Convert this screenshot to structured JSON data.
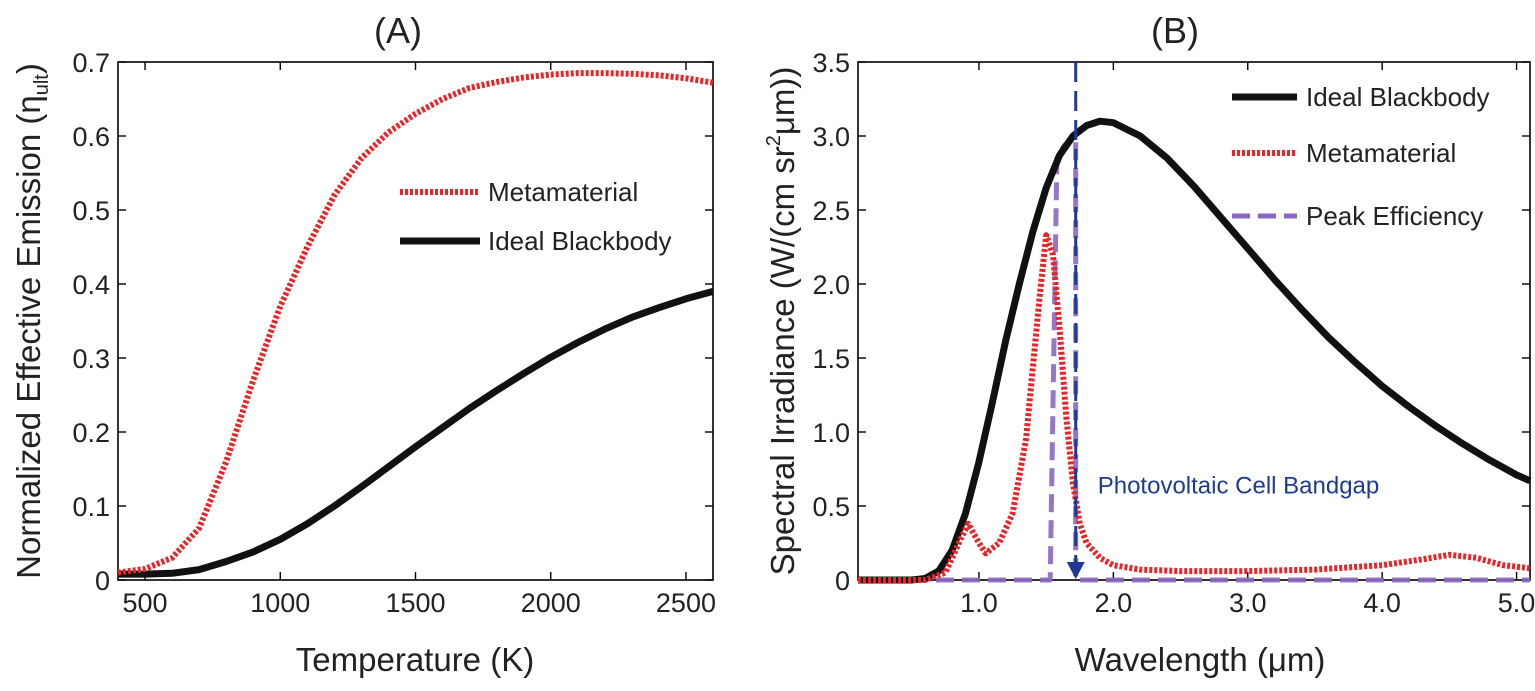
{
  "chart_data": [
    {
      "type": "line",
      "panel": "A",
      "title": "(A)",
      "xlabel": "Temperature (K)",
      "ylabel_main": "Normalized Effective Emission (η",
      "ylabel_sub": "ult",
      "ylabel_close": ")",
      "xlim": [
        400,
        2600
      ],
      "ylim": [
        0,
        0.7
      ],
      "xticks": [
        "500",
        "1000",
        "1500",
        "2000",
        "2500"
      ],
      "xtick_values": [
        500,
        1000,
        1500,
        2000,
        2500
      ],
      "yticks": [
        "0",
        "0.1",
        "0.2",
        "0.3",
        "0.4",
        "0.5",
        "0.6",
        "0.7"
      ],
      "ytick_values": [
        0,
        0.1,
        0.2,
        0.3,
        0.4,
        0.5,
        0.6,
        0.7
      ],
      "legend_position": "center-right",
      "series": [
        {
          "name": "Metamaterial",
          "style": "dotted",
          "color": "#e8262a",
          "x": [
            400,
            500,
            600,
            700,
            800,
            900,
            1000,
            1100,
            1200,
            1300,
            1400,
            1500,
            1600,
            1700,
            1800,
            1900,
            2000,
            2100,
            2200,
            2300,
            2400,
            2500,
            2600
          ],
          "y": [
            0.01,
            0.015,
            0.03,
            0.07,
            0.16,
            0.27,
            0.37,
            0.45,
            0.52,
            0.57,
            0.605,
            0.63,
            0.65,
            0.665,
            0.673,
            0.679,
            0.683,
            0.685,
            0.685,
            0.684,
            0.682,
            0.678,
            0.672
          ]
        },
        {
          "name": "Ideal Blackbody",
          "style": "solid",
          "color": "#111111",
          "x": [
            400,
            500,
            600,
            700,
            800,
            900,
            1000,
            1100,
            1200,
            1300,
            1400,
            1500,
            1600,
            1700,
            1800,
            1900,
            2000,
            2100,
            2200,
            2300,
            2400,
            2500,
            2600
          ],
          "y": [
            0.008,
            0.008,
            0.009,
            0.014,
            0.025,
            0.038,
            0.055,
            0.076,
            0.1,
            0.126,
            0.153,
            0.18,
            0.206,
            0.232,
            0.256,
            0.279,
            0.301,
            0.321,
            0.339,
            0.355,
            0.368,
            0.38,
            0.39
          ]
        }
      ]
    },
    {
      "type": "line",
      "panel": "B",
      "title": "(B)",
      "xlabel": "Wavelength (μm)",
      "ylabel_main": "Spectral Irradiance (W/(cm sr",
      "ylabel_sup": "2",
      "ylabel_close": "μm))",
      "xlim": [
        0.1,
        5.1
      ],
      "ylim": [
        0,
        3.5
      ],
      "xticks": [
        "1.0",
        "2.0",
        "3.0",
        "4.0",
        "5.0"
      ],
      "xtick_values": [
        1.0,
        2.0,
        3.0,
        4.0,
        5.0
      ],
      "yticks": [
        "0",
        "0.5",
        "1.0",
        "1.5",
        "2.0",
        "2.5",
        "3.0",
        "3.5"
      ],
      "ytick_values": [
        0,
        0.5,
        1.0,
        1.5,
        2.0,
        2.5,
        3.0,
        3.5
      ],
      "legend_position": "top-right",
      "annotation": {
        "text": "Photovoltaic Cell Bandgap",
        "x": 1.72,
        "y": 0.55,
        "arrow_x": 1.72,
        "arrow_from_y": 3.5,
        "arrow_to_y": 0.0,
        "color": "#1f3a93"
      },
      "series": [
        {
          "name": "Ideal Blackbody",
          "style": "solid",
          "color": "#111111",
          "x": [
            0.1,
            0.5,
            0.6,
            0.7,
            0.8,
            0.9,
            1.0,
            1.1,
            1.2,
            1.3,
            1.4,
            1.5,
            1.6,
            1.7,
            1.8,
            1.9,
            2.0,
            2.2,
            2.4,
            2.6,
            2.8,
            3.0,
            3.2,
            3.4,
            3.6,
            3.8,
            4.0,
            4.2,
            4.4,
            4.6,
            4.8,
            5.0,
            5.1
          ],
          "y": [
            0.0,
            0.0,
            0.01,
            0.06,
            0.2,
            0.45,
            0.8,
            1.2,
            1.62,
            2.0,
            2.35,
            2.65,
            2.87,
            3.0,
            3.07,
            3.1,
            3.09,
            3.0,
            2.85,
            2.66,
            2.45,
            2.24,
            2.03,
            1.83,
            1.64,
            1.47,
            1.31,
            1.17,
            1.04,
            0.92,
            0.81,
            0.71,
            0.67
          ]
        },
        {
          "name": "Metamaterial",
          "style": "dotted",
          "color": "#e8262a",
          "x": [
            0.1,
            0.6,
            0.75,
            0.85,
            0.92,
            1.0,
            1.05,
            1.15,
            1.25,
            1.35,
            1.45,
            1.5,
            1.55,
            1.6,
            1.65,
            1.7,
            1.75,
            1.8,
            1.9,
            2.0,
            2.2,
            2.5,
            3.0,
            3.5,
            4.0,
            4.3,
            4.5,
            4.7,
            4.9,
            5.1
          ],
          "y": [
            0.0,
            0.0,
            0.05,
            0.25,
            0.38,
            0.25,
            0.18,
            0.25,
            0.45,
            0.95,
            1.9,
            2.33,
            2.2,
            1.7,
            1.1,
            0.65,
            0.38,
            0.25,
            0.15,
            0.1,
            0.07,
            0.06,
            0.06,
            0.07,
            0.1,
            0.14,
            0.17,
            0.15,
            0.1,
            0.08
          ]
        },
        {
          "name": "Peak Efficiency",
          "style": "dashed",
          "color": "#8a68c0",
          "x": [
            0.1,
            1.43,
            1.53,
            1.58,
            1.63,
            1.68,
            1.72,
            1.72,
            5.1
          ],
          "y": [
            0.0,
            0.0,
            0.0,
            2.85,
            2.93,
            2.98,
            3.0,
            0.0,
            0.0
          ]
        }
      ]
    }
  ]
}
